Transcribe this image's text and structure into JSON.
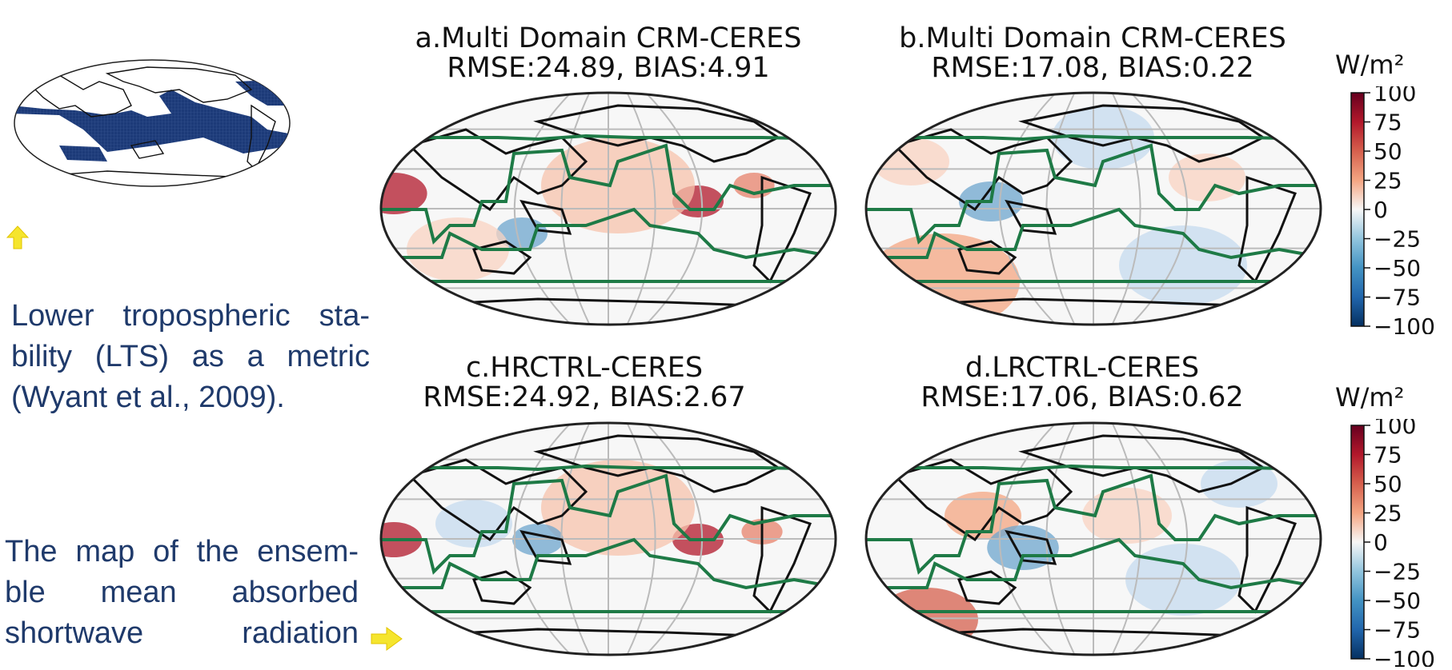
{
  "inset_map": {
    "description_icon": "lts-region-map"
  },
  "notes": {
    "lts": [
      "Lower tropospheric sta-",
      "bility (LTS) as a metric",
      "(Wyant et al., 2009)."
    ],
    "ensemble": [
      "The map of the ensem-",
      "ble mean absorbed",
      "shortwave radiation"
    ]
  },
  "panels": [
    {
      "id": "a",
      "title_line1": "a.Multi Domain CRM-CERES",
      "title_line2": "RMSE:24.89, BIAS:4.91"
    },
    {
      "id": "b",
      "title_line1": "b.Multi Domain CRM-CERES",
      "title_line2": "RMSE:17.08, BIAS:0.22"
    },
    {
      "id": "c",
      "title_line1": "c.HRCTRL-CERES",
      "title_line2": "RMSE:24.92, BIAS:2.67"
    },
    {
      "id": "d",
      "title_line1": "d.LRCTRL-CERES",
      "title_line2": "RMSE:17.06, BIAS:0.62"
    }
  ],
  "colorbars": [
    {
      "unit": "W/m²",
      "ticks": [
        "100",
        "75",
        "50",
        "25",
        "0",
        "−25",
        "−50",
        "−75",
        "−100"
      ]
    },
    {
      "unit": "W/m²",
      "ticks": [
        "100",
        "75",
        "50",
        "25",
        "0",
        "−25",
        "−50",
        "−75",
        "−100"
      ]
    }
  ],
  "colors": {
    "text_blue": "#1f3a6b",
    "lts_region": "#1c3a78",
    "contour_green": "#1e7a46",
    "coast": "#111111",
    "arrow_yellow": "#f5e52e",
    "cmap_high": "#67001f",
    "cmap_low": "#053061"
  }
}
